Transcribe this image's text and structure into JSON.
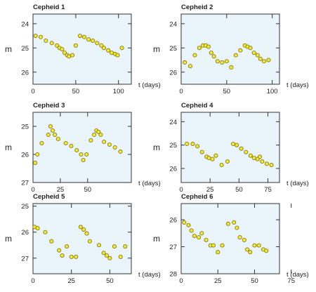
{
  "chart_data": [
    {
      "type": "scatter",
      "title": "Cepheid 1",
      "ylabel": "m",
      "xlabel": "t (days)",
      "xlim": [
        0,
        115
      ],
      "ylim": [
        26.5,
        23.6
      ],
      "xticks": [
        0,
        50,
        100
      ],
      "yticks": [
        24,
        25,
        26
      ],
      "x": [
        3,
        9,
        15,
        22,
        28,
        31,
        34,
        37,
        40,
        42,
        46,
        50,
        55,
        60,
        65,
        70,
        75,
        80,
        83,
        88,
        92,
        96,
        99,
        104
      ],
      "y": [
        24.5,
        24.55,
        24.7,
        24.8,
        24.9,
        25.0,
        25.05,
        25.2,
        25.3,
        25.35,
        25.3,
        24.9,
        24.5,
        24.55,
        24.65,
        24.7,
        24.8,
        24.9,
        25.0,
        25.1,
        25.2,
        25.25,
        25.3,
        25.0
      ]
    },
    {
      "type": "scatter",
      "title": "Cepheid 2",
      "ylabel": "m",
      "xlabel": "t (days)",
      "xlim": [
        0,
        108
      ],
      "ylim": [
        26.5,
        23.6
      ],
      "xticks": [
        0,
        50,
        100
      ],
      "yticks": [
        24,
        25,
        26
      ],
      "x": [
        4,
        10,
        15,
        20,
        24,
        27,
        30,
        33,
        36,
        40,
        45,
        50,
        55,
        60,
        65,
        70,
        73,
        76,
        80,
        84,
        87,
        91,
        96
      ],
      "y": [
        25.6,
        25.75,
        25.3,
        25.0,
        24.9,
        24.9,
        24.95,
        25.2,
        25.35,
        25.55,
        25.6,
        25.55,
        25.8,
        25.3,
        25.1,
        24.9,
        24.95,
        25.0,
        25.2,
        25.3,
        25.45,
        25.55,
        25.5
      ]
    },
    {
      "type": "scatter",
      "title": "Cepheid 3",
      "ylabel": "m",
      "xlabel": "t (days)",
      "xlim": [
        0,
        90
      ],
      "ylim": [
        27.0,
        24.5
      ],
      "xticks": [
        0,
        25,
        50
      ],
      "yticks": [
        25,
        26,
        27
      ],
      "x": [
        2,
        4,
        8,
        14,
        16,
        18,
        20,
        23,
        30,
        35,
        40,
        44,
        46,
        49,
        53,
        56,
        58,
        60,
        62,
        65,
        70,
        75,
        80
      ],
      "y": [
        26.3,
        26.0,
        25.6,
        25.3,
        25.0,
        25.15,
        25.3,
        25.45,
        25.6,
        25.7,
        25.85,
        26.0,
        26.2,
        26.0,
        25.5,
        25.3,
        25.15,
        25.2,
        25.3,
        25.55,
        25.65,
        25.75,
        25.9
      ]
    },
    {
      "type": "scatter",
      "title": "Cepheid 4",
      "ylabel": "m",
      "xlabel": "t (days)",
      "xlim": [
        0,
        85
      ],
      "ylim": [
        26.6,
        23.6
      ],
      "xticks": [
        0,
        25,
        50,
        75
      ],
      "yticks": [
        24,
        25,
        26
      ],
      "x": [
        5,
        10,
        14,
        18,
        22,
        24,
        27,
        30,
        35,
        40,
        45,
        48,
        52,
        56,
        60,
        63,
        66,
        68,
        70,
        74,
        78
      ],
      "y": [
        24.95,
        24.95,
        25.05,
        25.3,
        25.5,
        25.55,
        25.6,
        25.45,
        25.85,
        25.7,
        24.95,
        25.0,
        25.15,
        25.3,
        25.45,
        25.55,
        25.6,
        25.5,
        25.7,
        25.8,
        25.85
      ]
    },
    {
      "type": "scatter",
      "title": "Cepheid 5",
      "ylabel": "m",
      "xlabel": "t (days)",
      "xlim": [
        0,
        64
      ],
      "ylim": [
        27.6,
        24.9
      ],
      "xticks": [
        0,
        25,
        50
      ],
      "yticks": [
        25,
        26,
        27
      ],
      "x": [
        1,
        3,
        8,
        12,
        17,
        19,
        22,
        25,
        28,
        31,
        33,
        35,
        37,
        43,
        46,
        48,
        50,
        53,
        57,
        60
      ],
      "y": [
        25.8,
        25.85,
        26.0,
        26.35,
        26.7,
        26.9,
        26.55,
        26.95,
        26.95,
        25.8,
        25.9,
        26.05,
        26.35,
        26.5,
        26.8,
        26.9,
        27.0,
        26.55,
        26.95,
        26.55
      ]
    },
    {
      "type": "scatter",
      "title": "Cepheid 6",
      "ylabel": "m",
      "xlabel": "t (days)",
      "xlim": [
        0,
        67
      ],
      "ylim": [
        28.0,
        25.4
      ],
      "xticks": [
        0,
        25,
        50,
        75
      ],
      "yticks": [
        26,
        27,
        28
      ],
      "x": [
        2,
        5,
        7,
        9,
        12,
        14,
        17,
        20,
        22,
        25,
        28,
        32,
        36,
        38,
        40,
        43,
        45,
        47,
        50,
        53,
        56,
        58
      ],
      "y": [
        26.1,
        26.2,
        26.4,
        26.6,
        26.65,
        26.5,
        26.75,
        26.95,
        26.95,
        27.2,
        26.95,
        26.15,
        26.1,
        26.3,
        26.65,
        26.75,
        27.1,
        27.2,
        26.95,
        26.95,
        27.1,
        27.15
      ]
    }
  ]
}
